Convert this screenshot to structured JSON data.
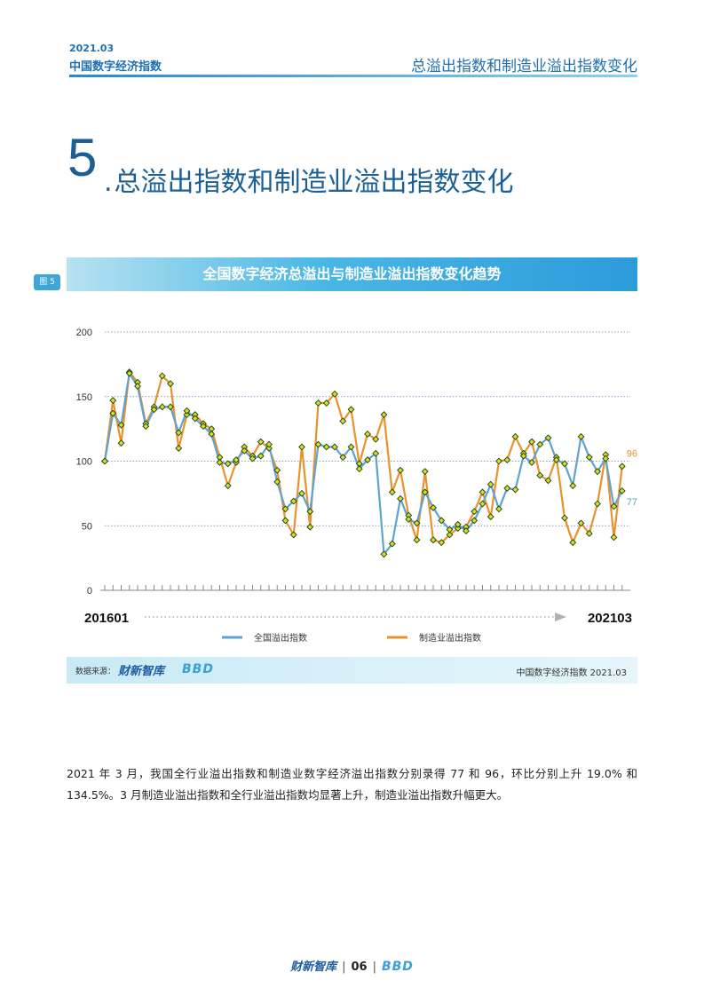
{
  "header": {
    "date": "2021.03",
    "report": "中国数字经济指数",
    "section": "总溢出指数和制造业溢出指数变化"
  },
  "section": {
    "number": "5",
    "dot": ".",
    "title": "总溢出指数和制造业溢出指数变化"
  },
  "figure": {
    "tag": "图 5",
    "title": "全国数字经济总溢出与制造业溢出指数变化趋势"
  },
  "chart_data": {
    "type": "line",
    "ylim": [
      0,
      200
    ],
    "yticks": [
      0,
      50,
      100,
      150,
      200
    ],
    "x_start_label": "201601",
    "x_end_label": "202103",
    "grid": "horizontal dotted",
    "legend_position": "bottom",
    "colors": {
      "total": "#5fa3d0",
      "manufacturing": "#e8922d",
      "marker_fill": "#d4e021",
      "marker_stroke": "#1c3d1c"
    },
    "series": [
      {
        "name": "全国溢出指数",
        "end_label": "77",
        "values": [
          100,
          137,
          128,
          168,
          158,
          127,
          140,
          142,
          142,
          122,
          139,
          133,
          127,
          121,
          99,
          98,
          101,
          108,
          102,
          104,
          113,
          84,
          63,
          69,
          75,
          61,
          113,
          111,
          111,
          103,
          111,
          94,
          101,
          106,
          28,
          36,
          71,
          55,
          52,
          76,
          64,
          54,
          47,
          51,
          46,
          54,
          67,
          82,
          63,
          79,
          78,
          104,
          99,
          113,
          118,
          101,
          98,
          81,
          119,
          103,
          92,
          102,
          65,
          77
        ]
      },
      {
        "name": "制造业溢出指数",
        "end_label": "96",
        "values": [
          100,
          147,
          114,
          169,
          161,
          129,
          142,
          166,
          160,
          110,
          136,
          136,
          129,
          125,
          103,
          81,
          99,
          111,
          104,
          115,
          110,
          93,
          54,
          43,
          111,
          49,
          145,
          145,
          152,
          131,
          140,
          98,
          121,
          117,
          136,
          76,
          93,
          58,
          39,
          92,
          39,
          37,
          43,
          48,
          49,
          61,
          76,
          57,
          100,
          101,
          119,
          106,
          115,
          89,
          85,
          103,
          56,
          37,
          52,
          44,
          67,
          105,
          41,
          96
        ]
      }
    ]
  },
  "source": {
    "label": "数据来源：",
    "logo1": "财新智库",
    "logo2": "BBD",
    "right": "中国数字经济指数 2021.03"
  },
  "body": {
    "paragraph": "2021 年 3 月，我国全行业溢出指数和制造业数字经济溢出指数分别录得 77 和 96，环比分别上升 19.0% 和 134.5%。3 月制造业溢出指数和全行业溢出指数均显著上升，制造业溢出指数升幅更大。"
  },
  "footer": {
    "logo1": "财新智库",
    "page": "06",
    "logo2": "BBD"
  }
}
